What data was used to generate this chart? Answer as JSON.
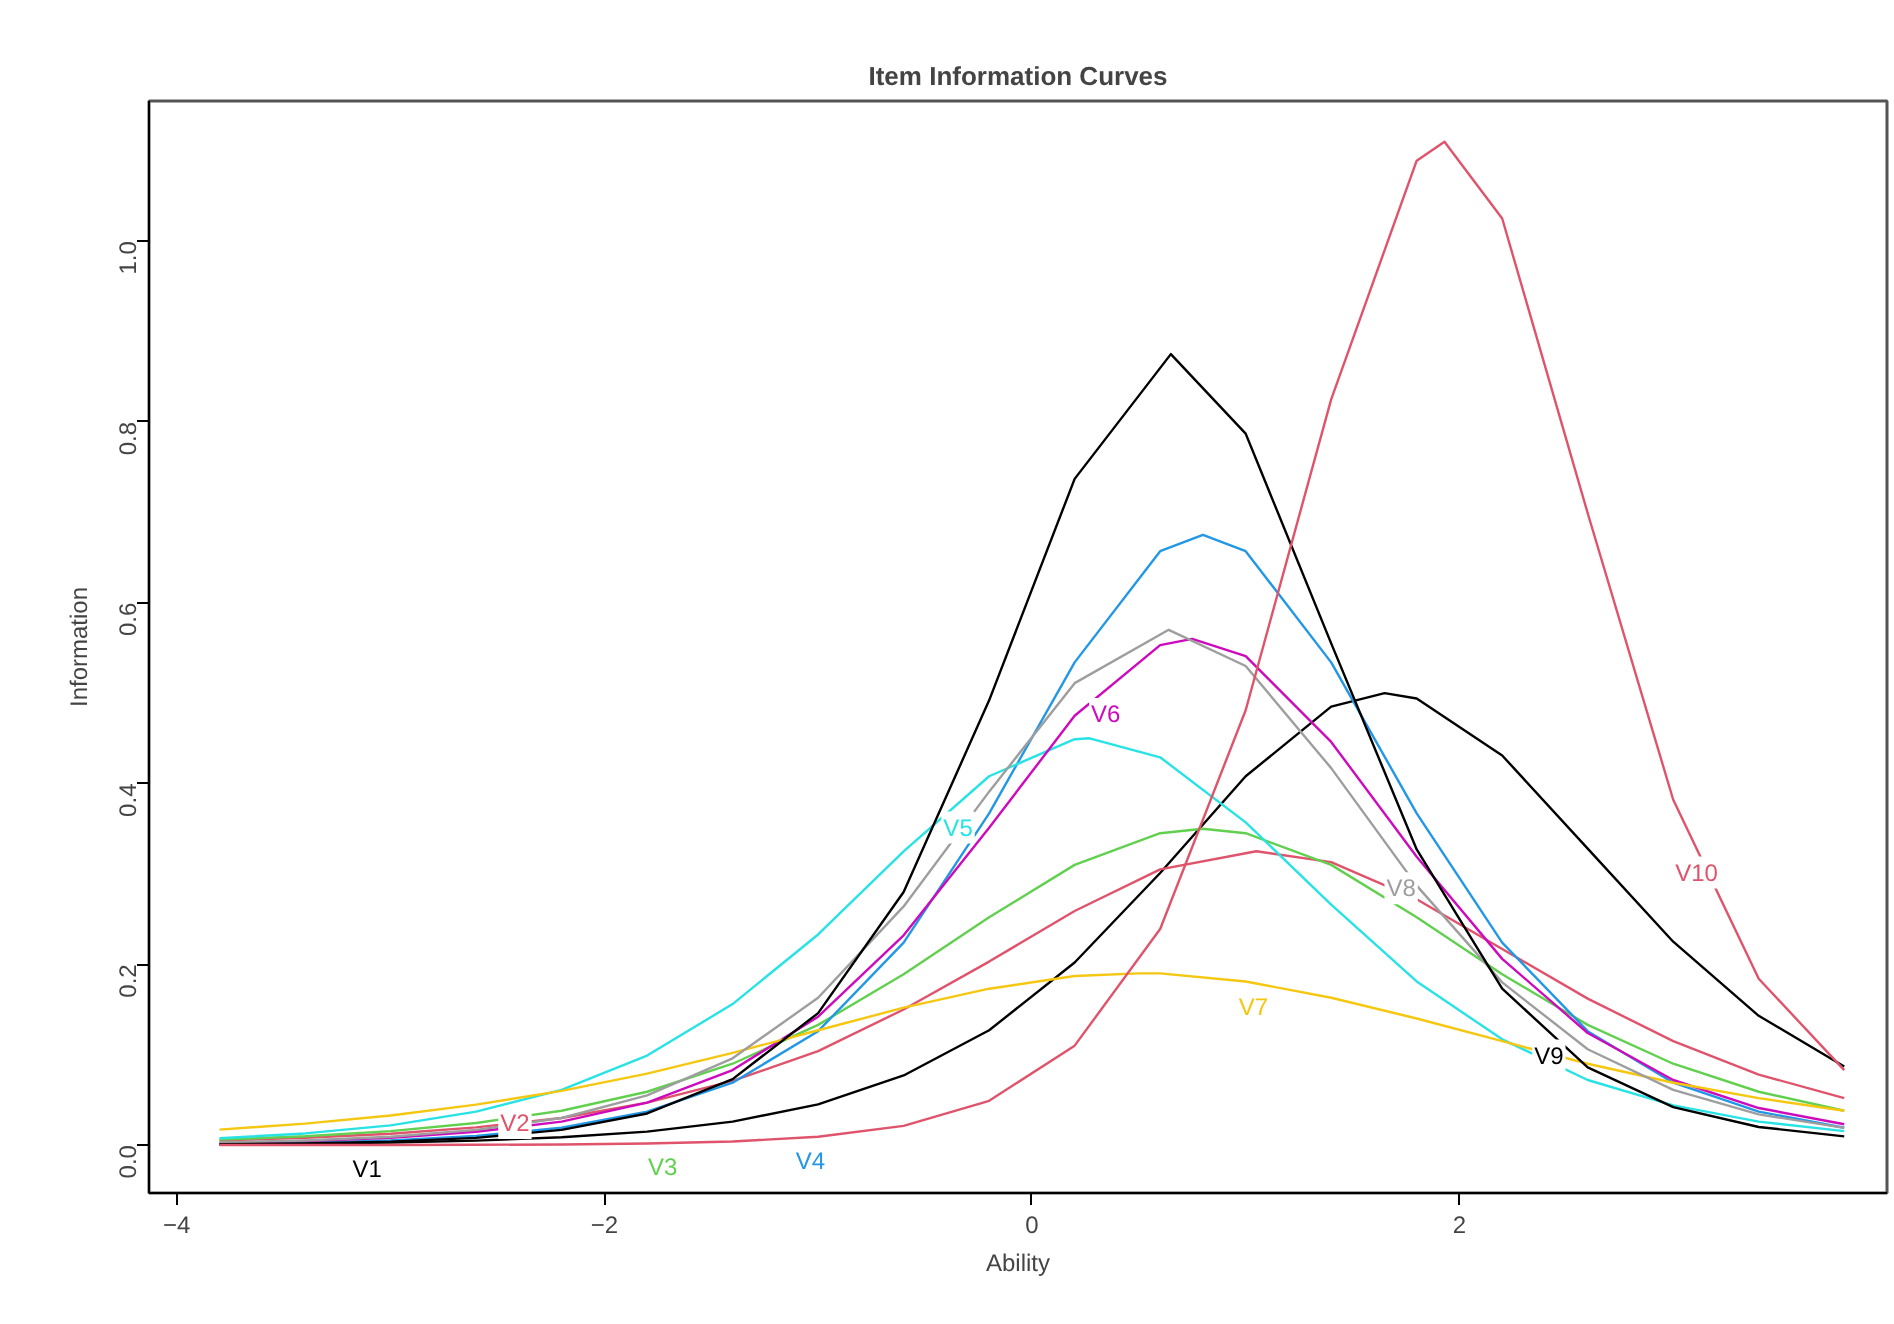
{
  "chart_data": {
    "type": "line",
    "title": "Item Information Curves",
    "xlabel": "Ability",
    "ylabel": "Information",
    "xlim": [
      -4.13,
      4.0
    ],
    "ylim": [
      -0.053,
      1.155
    ],
    "xticks": [
      -4,
      -2,
      0,
      2
    ],
    "yticks": [
      {
        "value": 0,
        "label": "0.0"
      },
      0.2,
      0.4,
      0.6,
      0.8,
      {
        "value": 1,
        "label": "1.0"
      }
    ],
    "grid": false,
    "legend": false,
    "line_style": "solid",
    "marker": "none",
    "series": [
      {
        "name": "V1",
        "color": "#000000",
        "x": [
          -3.8,
          -3.4,
          -3.0,
          -2.6,
          -2.2,
          -1.8,
          -1.4,
          -1.0,
          -0.6,
          -0.2,
          0.2,
          0.6,
          1.0,
          1.4,
          1.65,
          1.8,
          2.2,
          2.6,
          3.0,
          3.4,
          3.8
        ],
        "values": [
          0.0009,
          0.0016,
          0.0028,
          0.0049,
          0.0086,
          0.0149,
          0.026,
          0.045,
          0.077,
          0.127,
          0.202,
          0.301,
          0.408,
          0.485,
          0.5,
          0.494,
          0.431,
          0.328,
          0.225,
          0.143,
          0.087
        ]
      },
      {
        "name": "V2",
        "color": "#df536b",
        "x": [
          -3.8,
          -3.4,
          -3.0,
          -2.6,
          -2.2,
          -1.8,
          -1.4,
          -1.0,
          -0.6,
          -0.2,
          0.2,
          0.6,
          1.05,
          1.4,
          1.8,
          2.2,
          2.6,
          3.0,
          3.4,
          3.8
        ],
        "values": [
          0.0051,
          0.0081,
          0.0126,
          0.0196,
          0.03,
          0.047,
          0.071,
          0.104,
          0.15,
          0.203,
          0.259,
          0.305,
          0.325,
          0.313,
          0.272,
          0.217,
          0.162,
          0.115,
          0.078,
          0.052
        ]
      },
      {
        "name": "V3",
        "color": "#61d04f",
        "x": [
          -3.8,
          -3.4,
          -3.0,
          -2.6,
          -2.2,
          -1.8,
          -1.4,
          -1.0,
          -0.6,
          -0.2,
          0.2,
          0.6,
          0.8,
          1.0,
          1.4,
          1.8,
          2.2,
          2.6,
          3.0,
          3.4,
          3.8
        ],
        "values": [
          0.0061,
          0.0097,
          0.0155,
          0.0245,
          0.038,
          0.059,
          0.09,
          0.133,
          0.189,
          0.252,
          0.31,
          0.345,
          0.35,
          0.345,
          0.31,
          0.252,
          0.189,
          0.133,
          0.09,
          0.059,
          0.038
        ]
      },
      {
        "name": "V4",
        "color": "#2297e6",
        "x": [
          -3.8,
          -3.4,
          -3.0,
          -2.6,
          -2.2,
          -1.8,
          -1.4,
          -1.0,
          -0.6,
          -0.2,
          0.2,
          0.6,
          0.8,
          1.0,
          1.4,
          1.8,
          2.2,
          2.6,
          3.0,
          3.4,
          3.8
        ],
        "values": [
          0.0014,
          0.0027,
          0.0052,
          0.01,
          0.0192,
          0.037,
          0.069,
          0.126,
          0.224,
          0.367,
          0.534,
          0.657,
          0.675,
          0.657,
          0.534,
          0.367,
          0.224,
          0.126,
          0.069,
          0.037,
          0.0192
        ]
      },
      {
        "name": "V5",
        "color": "#28e2e5",
        "x": [
          -3.8,
          -3.4,
          -3.0,
          -2.6,
          -2.2,
          -1.8,
          -1.4,
          -1.0,
          -0.6,
          -0.2,
          0.2,
          0.27,
          0.6,
          1.0,
          1.4,
          1.8,
          2.2,
          2.6,
          3.0,
          3.4,
          3.8
        ],
        "values": [
          0.0076,
          0.0129,
          0.0218,
          0.037,
          0.061,
          0.099,
          0.156,
          0.233,
          0.325,
          0.408,
          0.449,
          0.45,
          0.429,
          0.357,
          0.266,
          0.181,
          0.117,
          0.072,
          0.044,
          0.026,
          0.0155
        ]
      },
      {
        "name": "V6",
        "color": "#cd0bbc",
        "x": [
          -3.8,
          -3.4,
          -3.0,
          -2.6,
          -2.2,
          -1.8,
          -1.4,
          -1.0,
          -0.6,
          -0.2,
          0.2,
          0.6,
          0.75,
          1.0,
          1.4,
          1.8,
          2.2,
          2.6,
          3.0,
          3.4,
          3.8
        ],
        "values": [
          0.0025,
          0.0045,
          0.0081,
          0.0147,
          0.026,
          0.047,
          0.083,
          0.142,
          0.232,
          0.351,
          0.475,
          0.553,
          0.56,
          0.541,
          0.446,
          0.319,
          0.206,
          0.124,
          0.072,
          0.041,
          0.023
        ]
      },
      {
        "name": "V7",
        "color": "#f5c710",
        "x": [
          -3.8,
          -3.4,
          -3.0,
          -2.6,
          -2.2,
          -1.8,
          -1.4,
          -1.0,
          -0.6,
          -0.2,
          0.2,
          0.5,
          0.6,
          1.0,
          1.4,
          1.8,
          2.2,
          2.6,
          3.0,
          3.4,
          3.8
        ],
        "values": [
          0.0171,
          0.0238,
          0.0328,
          0.0447,
          0.06,
          0.079,
          0.102,
          0.127,
          0.152,
          0.173,
          0.187,
          0.19,
          0.19,
          0.181,
          0.163,
          0.14,
          0.115,
          0.09,
          0.069,
          0.052,
          0.038
        ]
      },
      {
        "name": "V8",
        "color": "#9e9e9e",
        "x": [
          -3.8,
          -3.4,
          -3.0,
          -2.6,
          -2.2,
          -1.8,
          -1.4,
          -1.0,
          -0.6,
          -0.2,
          0.2,
          0.64,
          1.0,
          1.4,
          1.8,
          2.2,
          2.6,
          3.0,
          3.4,
          3.8
        ],
        "values": [
          0.0028,
          0.0051,
          0.0093,
          0.0168,
          0.03,
          0.055,
          0.096,
          0.163,
          0.264,
          0.391,
          0.511,
          0.57,
          0.53,
          0.417,
          0.287,
          0.18,
          0.106,
          0.061,
          0.034,
          0.019
        ]
      },
      {
        "name": "V9",
        "color": "#000000",
        "x": [
          -3.8,
          -3.4,
          -3.0,
          -2.6,
          -2.2,
          -1.8,
          -1.4,
          -1.0,
          -0.6,
          -0.2,
          0.2,
          0.65,
          1.0,
          1.4,
          1.8,
          2.2,
          2.6,
          3.0,
          3.4,
          3.8
        ],
        "values": [
          0.00085,
          0.0018,
          0.0038,
          0.008,
          0.0168,
          0.035,
          0.073,
          0.146,
          0.28,
          0.492,
          0.737,
          0.875,
          0.787,
          0.555,
          0.327,
          0.173,
          0.086,
          0.042,
          0.02,
          0.0097
        ]
      },
      {
        "name": "V10",
        "color": "#df536b",
        "x": [
          -3.8,
          -3.4,
          -3.0,
          -2.6,
          -2.2,
          -1.8,
          -1.4,
          -1.0,
          -0.6,
          -0.2,
          0.2,
          0.6,
          1.0,
          1.4,
          1.8,
          1.93,
          2.2,
          2.6,
          3.0,
          3.4,
          3.8
        ],
        "values": [
          3e-05,
          6e-05,
          0.00014,
          0.0003,
          0.0007,
          0.0017,
          0.004,
          0.0092,
          0.0213,
          0.049,
          0.11,
          0.239,
          0.481,
          0.825,
          1.089,
          1.11,
          1.025,
          0.699,
          0.382,
          0.184,
          0.083
        ]
      }
    ]
  }
}
